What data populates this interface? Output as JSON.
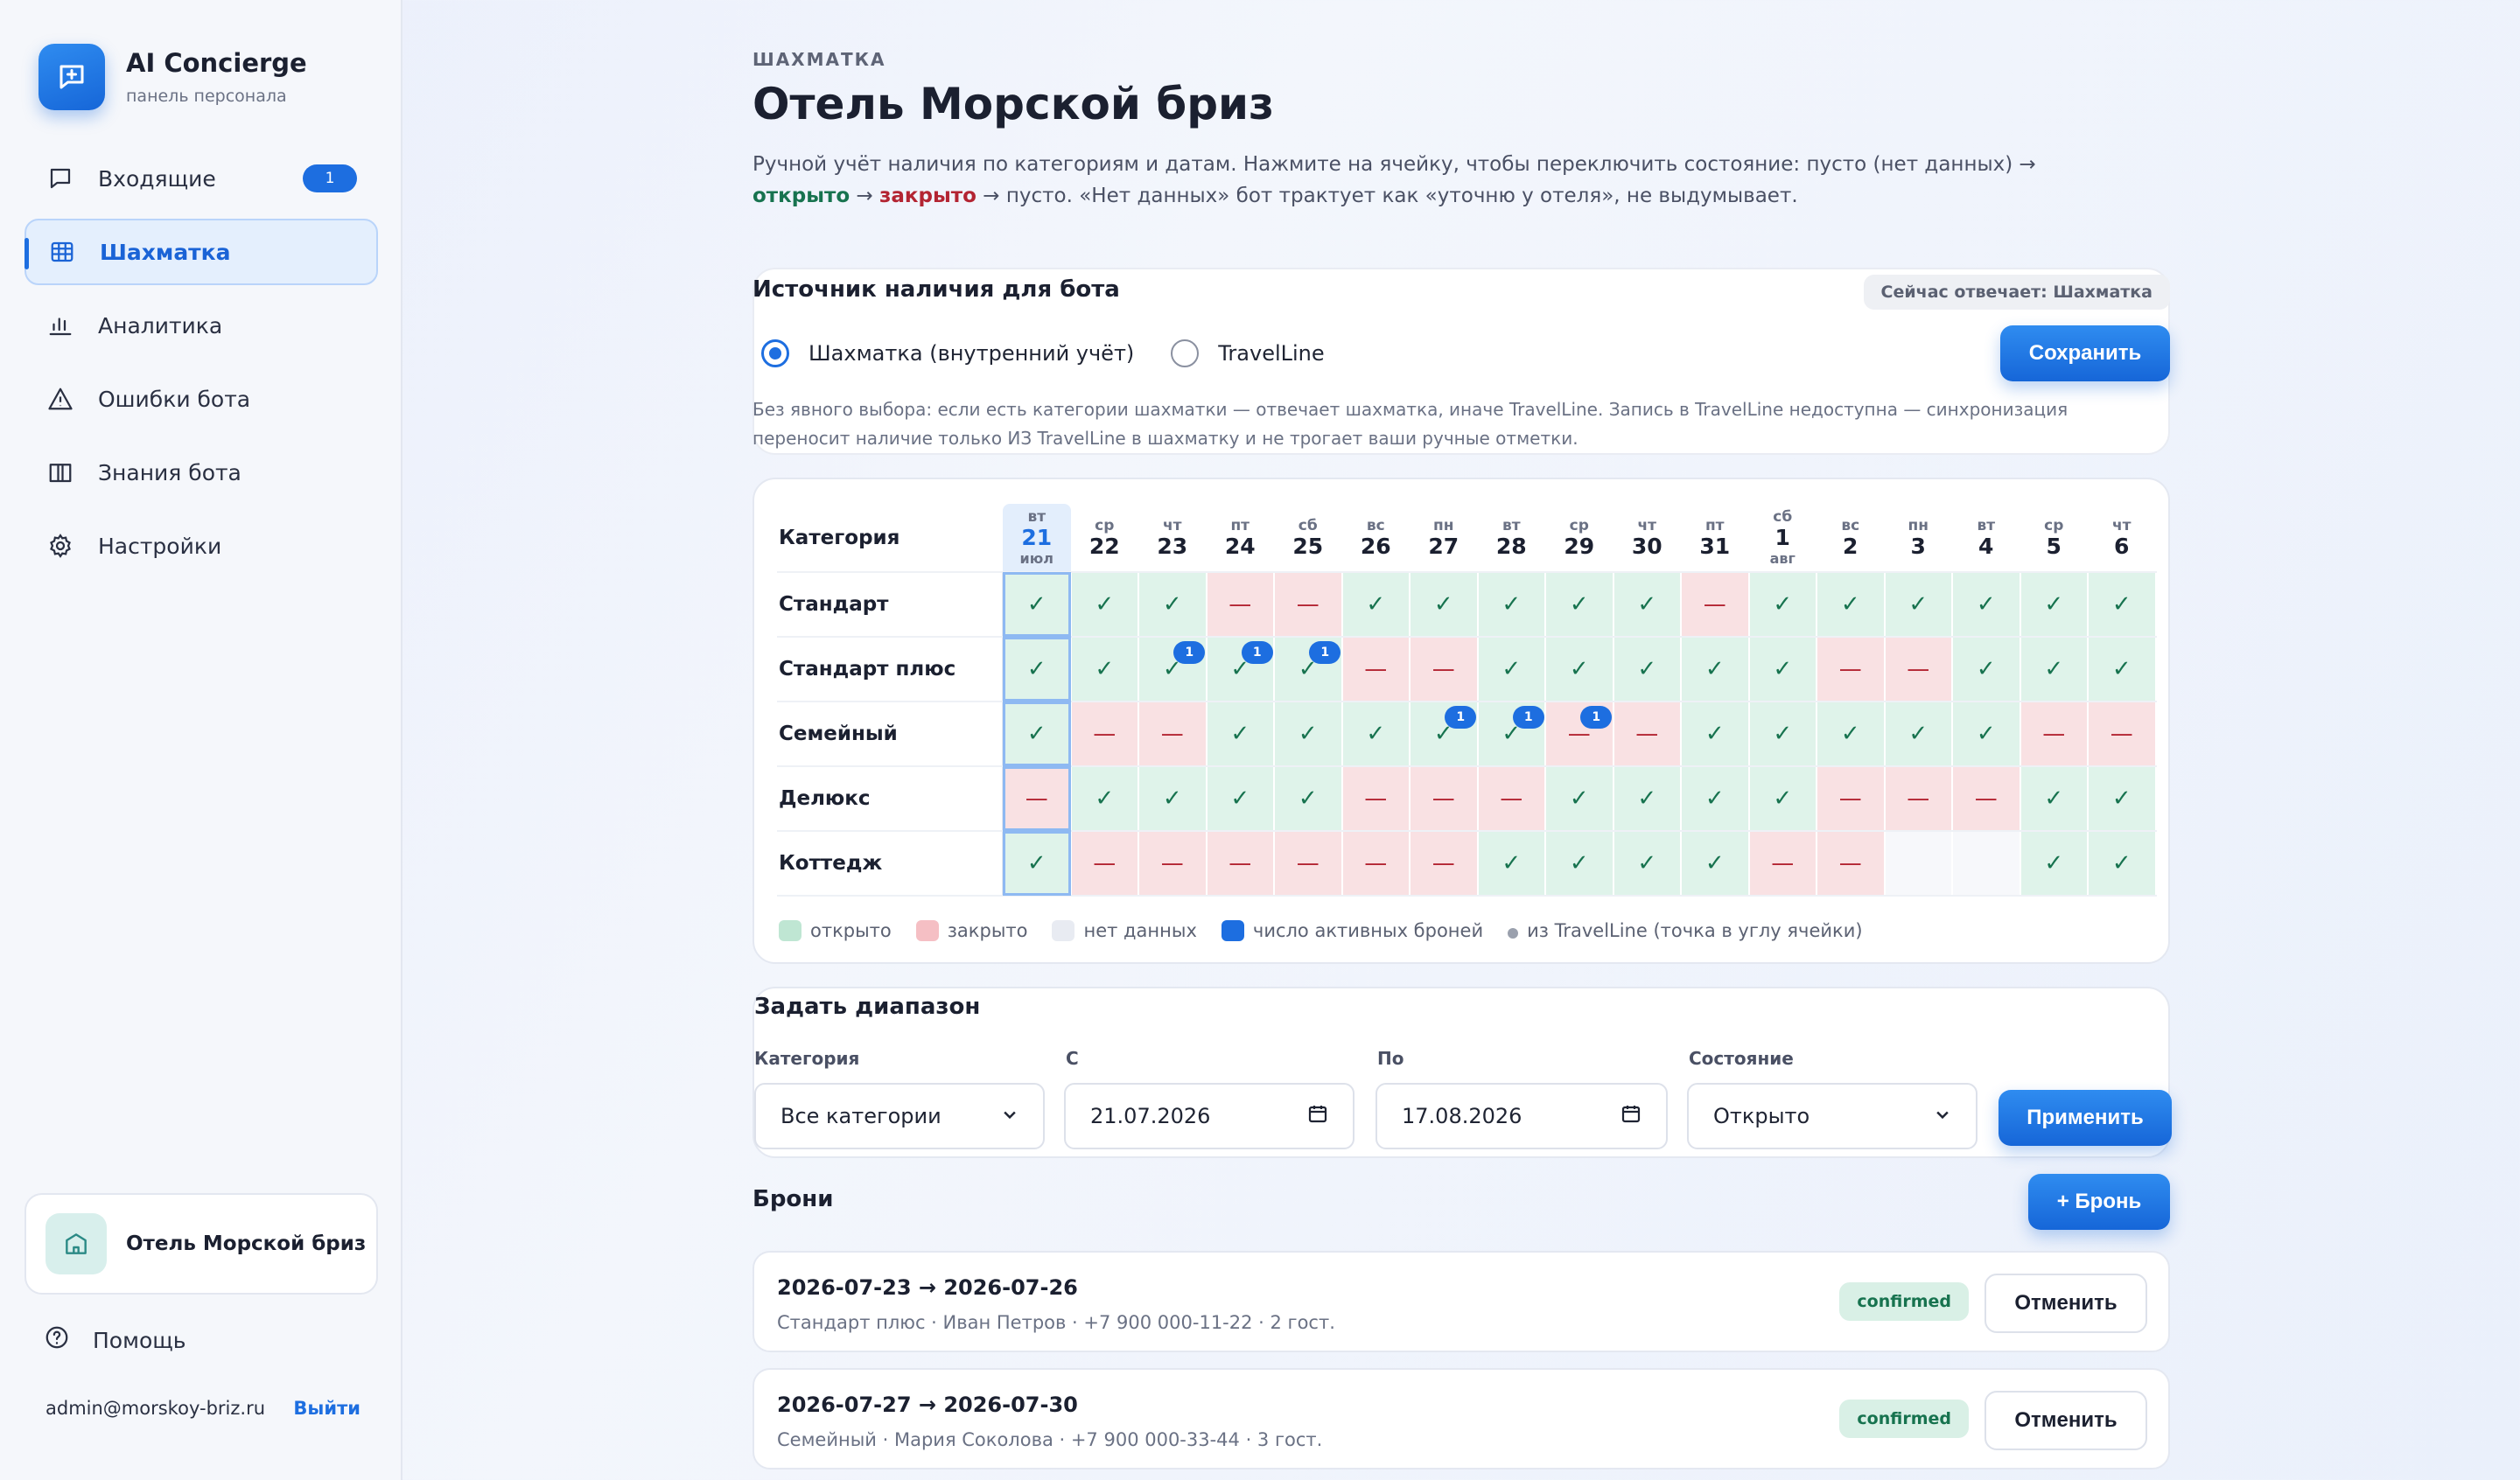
{
  "brand": {
    "title": "AI Concierge",
    "subtitle": "панель персонала"
  },
  "nav": [
    {
      "label": "Входящие",
      "icon": "chat-icon",
      "badge": "1"
    },
    {
      "label": "Шахматка",
      "icon": "grid-icon",
      "active": true
    },
    {
      "label": "Аналитика",
      "icon": "bar-chart-icon"
    },
    {
      "label": "Ошибки бота",
      "icon": "warning-icon"
    },
    {
      "label": "Знания бота",
      "icon": "book-icon"
    },
    {
      "label": "Настройки",
      "icon": "gear-icon"
    }
  ],
  "sidebar_footer": {
    "hotel": "Отель Морской бриз",
    "help": "Помощь",
    "email": "admin@morskoy-briz.ru",
    "logout": "Выйти"
  },
  "page": {
    "eyebrow": "ШАХМАТКА",
    "title": "Отель Морской бриз",
    "desc_1": "Ручной учёт наличия по категориям и датам. Нажмите на ячейку, чтобы переключить состояние: пусто (нет данных) → ",
    "desc_open": "открыто",
    "desc_2": " → ",
    "desc_closed": "закрыто",
    "desc_3": " → пусто. «Нет данных» бот трактует как «уточню у отеля», не выдумывает."
  },
  "source": {
    "title": "Источник наличия для бота",
    "badge": "Сейчас отвечает: Шахматка",
    "option_1": "Шахматка (внутренний учёт)",
    "option_2": "TravelLine",
    "save": "Сохранить",
    "note": "Без явного выбора: если есть категории шахматки — отвечает шахматка, иначе TravelLine. Запись в TravelLine недоступна — синхронизация переносит наличие только ИЗ TravelLine в шахматку и не трогает ваши ручные отметки."
  },
  "grid": {
    "category_header": "Категория",
    "days": [
      {
        "wd": "вт",
        "d": "21",
        "m": "июл"
      },
      {
        "wd": "ср",
        "d": "22"
      },
      {
        "wd": "чт",
        "d": "23"
      },
      {
        "wd": "пт",
        "d": "24"
      },
      {
        "wd": "сб",
        "d": "25"
      },
      {
        "wd": "вс",
        "d": "26"
      },
      {
        "wd": "пн",
        "d": "27"
      },
      {
        "wd": "вт",
        "d": "28"
      },
      {
        "wd": "ср",
        "d": "29"
      },
      {
        "wd": "чт",
        "d": "30"
      },
      {
        "wd": "пт",
        "d": "31"
      },
      {
        "wd": "сб",
        "d": "1",
        "m": "авг"
      },
      {
        "wd": "вс",
        "d": "2"
      },
      {
        "wd": "пн",
        "d": "3"
      },
      {
        "wd": "вт",
        "d": "4"
      },
      {
        "wd": "ср",
        "d": "5"
      },
      {
        "wd": "чт",
        "d": "6"
      }
    ],
    "rows": [
      {
        "name": "Стандарт",
        "cells": "ooocc ooooo coooo oo",
        "bookings": {}
      },
      {
        "name": "Стандарт плюс",
        "cells": "ooooo ccooo oocco oo",
        "bookings": {
          "2": "1",
          "3": "1",
          "4": "1"
        }
      },
      {
        "name": "Семейный",
        "cells": "occoo ooocc ooooo cc",
        "bookings": {
          "6": "1",
          "7": "1",
          "8": "1"
        }
      },
      {
        "name": "Делюкс",
        "cells": "coooo cccoo ooccc oo",
        "bookings": {}
      },
      {
        "name": "Коттедж",
        "cells": "occcc ccooo occee oo",
        "bookings": {}
      }
    ],
    "open_mark": "✓",
    "closed_mark": "—",
    "legend": {
      "open": "открыто",
      "closed": "закрыто",
      "empty": "нет данных",
      "bookings": "число активных броней",
      "travelline": "из TravelLine (точка в углу ячейки)"
    },
    "colors": {
      "open": "#dff3ea",
      "closed": "#f9e1e3",
      "empty": "#f0f2f6",
      "booking": "#1d6ee0"
    }
  },
  "range": {
    "title": "Задать диапазон",
    "category_label": "Категория",
    "category_value": "Все категории",
    "from_label": "С",
    "from_value": "21.07.2026",
    "to_label": "По",
    "to_value": "17.08.2026",
    "state_label": "Состояние",
    "state_value": "Открыто",
    "apply": "Применить"
  },
  "bookings": {
    "title": "Брони",
    "add": "+ Бронь",
    "items": [
      {
        "dates": "2026-07-23 → 2026-07-26",
        "meta": "Стандарт плюс · Иван Петров · +7 900 000-11-22 · 2 гост.",
        "status": "confirmed",
        "cancel": "Отменить"
      },
      {
        "dates": "2026-07-27 → 2026-07-30",
        "meta": "Семейный · Мария Соколова · +7 900 000-33-44 · 3 гост.",
        "status": "confirmed",
        "cancel": "Отменить"
      }
    ]
  }
}
